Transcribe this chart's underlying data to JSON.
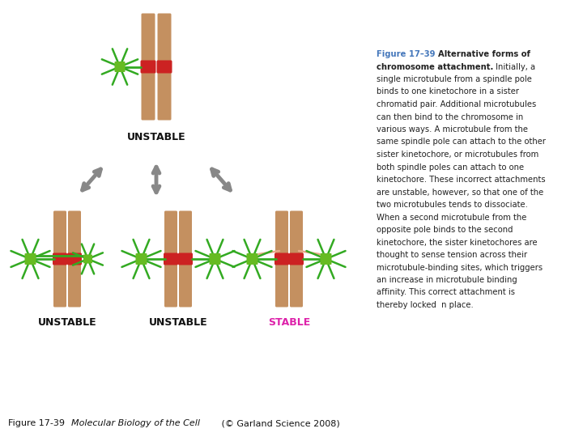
{
  "background_color": "#ffffff",
  "chromosome_color": "#c49060",
  "centromere_color": "#cc2222",
  "kinetochore_color": "#66bb22",
  "microtubule_color": "#33aa22",
  "arrow_color": "#888888",
  "stable_label_color": "#dd22aa",
  "unstable_label_color": "#111111",
  "dashed_mt_color": "#e8a888",
  "title_color": "#4477bb",
  "body_color": "#222222",
  "caption_text_italic": "Molecular Biology of the Cell",
  "caption_text_normal": " (© Garland Science 2008)",
  "caption_prefix": "Figure 17-39  ",
  "text_lines": [
    {
      "text": "Figure 17–39 ",
      "bold": true,
      "color": "#4477bb",
      "newline": false
    },
    {
      "text": "Alternative forms of",
      "bold": true,
      "color": "#333333",
      "newline": false
    },
    {
      "text": "chromosome attachment.",
      "bold": true,
      "color": "#333333",
      "newline": true
    },
    {
      "text": "Initially, a",
      "bold": false,
      "color": "#333333",
      "newline": false
    },
    {
      "text": "single microtubule from a spindle pole",
      "bold": false,
      "color": "#333333",
      "newline": true
    },
    {
      "text": "binds to one kinetochore in a sister",
      "bold": false,
      "color": "#333333",
      "newline": true
    },
    {
      "text": "chromatid pair. Additional microtubules",
      "bold": false,
      "color": "#333333",
      "newline": true
    },
    {
      "text": "can then bind to the chromosome in",
      "bold": false,
      "color": "#333333",
      "newline": true
    },
    {
      "text": "various ways. A microtubule from the",
      "bold": false,
      "color": "#333333",
      "newline": true
    },
    {
      "text": "same spindle pole can attach to the other",
      "bold": false,
      "color": "#333333",
      "newline": true
    },
    {
      "text": "sister kinetochore, or microtubules from",
      "bold": false,
      "color": "#333333",
      "newline": true
    },
    {
      "text": "both spindle poles can attach to one",
      "bold": false,
      "color": "#333333",
      "newline": true
    },
    {
      "text": "kinetochore. These incorrect attachments",
      "bold": false,
      "color": "#333333",
      "newline": true
    },
    {
      "text": "are unstable, however, so that one of the",
      "bold": false,
      "color": "#333333",
      "newline": true
    },
    {
      "text": "two microtubules tends to dissociate.",
      "bold": false,
      "color": "#333333",
      "newline": true
    },
    {
      "text": "When a second microtubule from the",
      "bold": false,
      "color": "#333333",
      "newline": true
    },
    {
      "text": "opposite pole binds to the second",
      "bold": false,
      "color": "#333333",
      "newline": true
    },
    {
      "text": "kinetochore, the sister kinetochores are",
      "bold": false,
      "color": "#333333",
      "newline": true
    },
    {
      "text": "thought to sense tension across their",
      "bold": false,
      "color": "#333333",
      "newline": true
    },
    {
      "text": "microtubule-binding sites, which triggers",
      "bold": false,
      "color": "#333333",
      "newline": true
    },
    {
      "text": "an increase in microtubule binding",
      "bold": false,
      "color": "#333333",
      "newline": true
    },
    {
      "text": "affinity. This correct attachment is",
      "bold": false,
      "color": "#333333",
      "newline": true
    },
    {
      "text": "thereby locked  n place.",
      "bold": false,
      "color": "#333333",
      "newline": true
    }
  ]
}
